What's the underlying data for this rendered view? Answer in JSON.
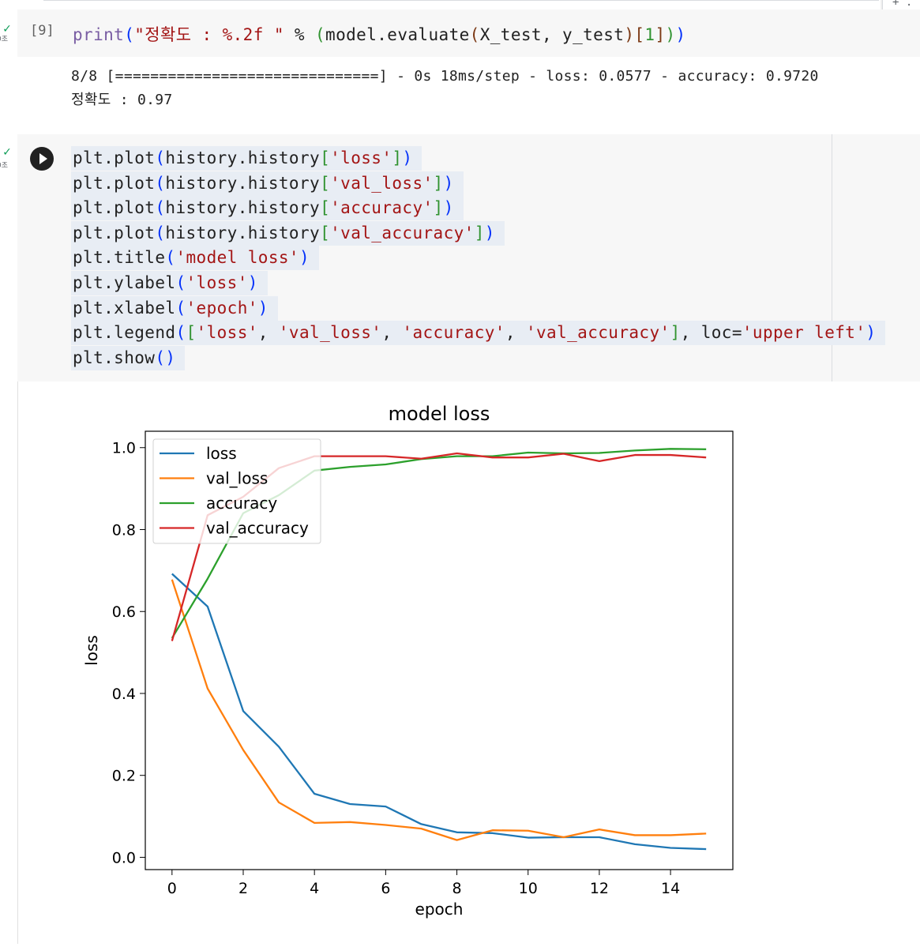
{
  "toolbar": {
    "corner_label": "+ ."
  },
  "cells": [
    {
      "status_icon": "check-icon",
      "time_label": "0초",
      "exec_count": "[9]",
      "code_tokens": [
        {
          "t": "print",
          "c": "k-fn"
        },
        {
          "t": "(",
          "c": "k-br1"
        },
        {
          "t": "\"정확도 : %.2f \"",
          "c": "k-str"
        },
        {
          "t": " % ",
          "c": "k-plain"
        },
        {
          "t": "(",
          "c": "k-br2"
        },
        {
          "t": "model.evaluate",
          "c": "k-plain"
        },
        {
          "t": "(",
          "c": "k-br3"
        },
        {
          "t": "X_test, y_test",
          "c": "k-plain"
        },
        {
          "t": ")",
          "c": "k-br3"
        },
        {
          "t": "[",
          "c": "k-br3"
        },
        {
          "t": "1",
          "c": "k-br2"
        },
        {
          "t": "]",
          "c": "k-br3"
        },
        {
          "t": ")",
          "c": "k-br2"
        },
        {
          "t": ")",
          "c": "k-br1"
        }
      ],
      "output": [
        "8/8 [==============================] - 0s 18ms/step - loss: 0.0577 - accuracy: 0.9720",
        "정확도 : 0.97"
      ]
    },
    {
      "status_icon": "check-icon",
      "time_label": "0초",
      "run_button": "run-cell",
      "code_lines": [
        [
          {
            "t": "plt.plot",
            "c": ""
          },
          {
            "t": "(",
            "c": "b"
          },
          {
            "t": "history.history",
            "c": ""
          },
          {
            "t": "[",
            "c": "g"
          },
          {
            "t": "'loss'",
            "c": "s"
          },
          {
            "t": "]",
            "c": "g"
          },
          {
            "t": ")",
            "c": "b"
          }
        ],
        [
          {
            "t": "plt.plot",
            "c": ""
          },
          {
            "t": "(",
            "c": "b"
          },
          {
            "t": "history.history",
            "c": ""
          },
          {
            "t": "[",
            "c": "g"
          },
          {
            "t": "'val_loss'",
            "c": "s"
          },
          {
            "t": "]",
            "c": "g"
          },
          {
            "t": ")",
            "c": "b"
          }
        ],
        [
          {
            "t": "plt.plot",
            "c": ""
          },
          {
            "t": "(",
            "c": "b"
          },
          {
            "t": "history.history",
            "c": ""
          },
          {
            "t": "[",
            "c": "g"
          },
          {
            "t": "'accuracy'",
            "c": "s"
          },
          {
            "t": "]",
            "c": "g"
          },
          {
            "t": ")",
            "c": "b"
          }
        ],
        [
          {
            "t": "plt.plot",
            "c": ""
          },
          {
            "t": "(",
            "c": "b"
          },
          {
            "t": "history.history",
            "c": ""
          },
          {
            "t": "[",
            "c": "g"
          },
          {
            "t": "'val_accuracy'",
            "c": "s"
          },
          {
            "t": "]",
            "c": "g"
          },
          {
            "t": ")",
            "c": "b"
          }
        ],
        [
          {
            "t": "plt.title",
            "c": ""
          },
          {
            "t": "(",
            "c": "b"
          },
          {
            "t": "'model loss'",
            "c": "s"
          },
          {
            "t": ")",
            "c": "b"
          }
        ],
        [
          {
            "t": "plt.ylabel",
            "c": ""
          },
          {
            "t": "(",
            "c": "b"
          },
          {
            "t": "'loss'",
            "c": "s"
          },
          {
            "t": ")",
            "c": "b"
          }
        ],
        [
          {
            "t": "plt.xlabel",
            "c": ""
          },
          {
            "t": "(",
            "c": "b"
          },
          {
            "t": "'epoch'",
            "c": "s"
          },
          {
            "t": ")",
            "c": "b"
          }
        ],
        [
          {
            "t": "plt.legend",
            "c": ""
          },
          {
            "t": "(",
            "c": "b"
          },
          {
            "t": "[",
            "c": "g"
          },
          {
            "t": "'loss'",
            "c": "s"
          },
          {
            "t": ", ",
            "c": ""
          },
          {
            "t": "'val_loss'",
            "c": "s"
          },
          {
            "t": ", ",
            "c": ""
          },
          {
            "t": "'accuracy'",
            "c": "s"
          },
          {
            "t": ", ",
            "c": ""
          },
          {
            "t": "'val_accuracy'",
            "c": "s"
          },
          {
            "t": "]",
            "c": "g"
          },
          {
            "t": ", loc=",
            "c": ""
          },
          {
            "t": "'upper left'",
            "c": "s"
          },
          {
            "t": ")",
            "c": "b"
          }
        ],
        [
          {
            "t": "plt.show",
            "c": ""
          },
          {
            "t": "()",
            "c": "b"
          }
        ]
      ]
    }
  ],
  "chart_data": {
    "type": "line",
    "title": "model loss",
    "xlabel": "epoch",
    "ylabel": "loss",
    "xlim": [
      -0.75,
      15.75
    ],
    "ylim": [
      -0.03,
      1.04
    ],
    "xticks": [
      0,
      2,
      4,
      6,
      8,
      10,
      12,
      14
    ],
    "yticks": [
      0.0,
      0.2,
      0.4,
      0.6,
      0.8,
      1.0
    ],
    "ytick_labels": [
      "0.0",
      "0.2",
      "0.4",
      "0.6",
      "0.8",
      "1.0"
    ],
    "grid": false,
    "legend_position": "upper left",
    "x": [
      0,
      1,
      2,
      3,
      4,
      5,
      6,
      7,
      8,
      9,
      10,
      11,
      12,
      13,
      14,
      15
    ],
    "series": [
      {
        "name": "loss",
        "color": "#1f77b4",
        "values": [
          0.692,
          0.612,
          0.357,
          0.27,
          0.155,
          0.13,
          0.124,
          0.081,
          0.061,
          0.059,
          0.048,
          0.049,
          0.049,
          0.032,
          0.023,
          0.02
        ]
      },
      {
        "name": "val_loss",
        "color": "#ff7f0e",
        "values": [
          0.678,
          0.412,
          0.262,
          0.134,
          0.084,
          0.086,
          0.079,
          0.07,
          0.042,
          0.066,
          0.065,
          0.049,
          0.068,
          0.054,
          0.054,
          0.058
        ]
      },
      {
        "name": "accuracy",
        "color": "#2ca02c",
        "values": [
          0.535,
          0.68,
          0.84,
          0.884,
          0.944,
          0.953,
          0.959,
          0.972,
          0.979,
          0.979,
          0.988,
          0.986,
          0.987,
          0.993,
          0.997,
          0.996
        ]
      },
      {
        "name": "val_accuracy",
        "color": "#d62728",
        "values": [
          0.528,
          0.835,
          0.88,
          0.95,
          0.979,
          0.979,
          0.979,
          0.973,
          0.986,
          0.976,
          0.976,
          0.985,
          0.967,
          0.982,
          0.982,
          0.976
        ]
      }
    ]
  }
}
